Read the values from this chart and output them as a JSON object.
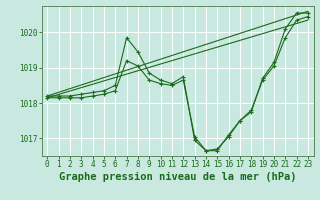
{
  "background_color": "#c8e8e0",
  "plot_bg_color": "#c8e8e0",
  "grid_color": "#ffffff",
  "line_color": "#1a6b1a",
  "spine_color": "#4a7a4a",
  "title": "Graphe pression niveau de la mer (hPa)",
  "xlim": [
    -0.5,
    23.5
  ],
  "ylim": [
    1016.5,
    1020.75
  ],
  "yticks": [
    1017,
    1018,
    1019,
    1020
  ],
  "xticks": [
    0,
    1,
    2,
    3,
    4,
    5,
    6,
    7,
    8,
    9,
    10,
    11,
    12,
    13,
    14,
    15,
    16,
    17,
    18,
    19,
    20,
    21,
    22,
    23
  ],
  "series": [
    {
      "x": [
        0,
        1,
        2,
        3,
        4,
        5,
        6,
        7,
        8,
        9,
        10,
        11,
        12,
        13,
        14,
        15,
        16,
        17,
        18,
        19,
        20,
        21,
        22,
        23
      ],
      "y": [
        1018.2,
        1018.2,
        1018.2,
        1018.25,
        1018.3,
        1018.35,
        1018.5,
        1019.85,
        1019.45,
        1018.85,
        1018.65,
        1018.55,
        1018.75,
        1016.95,
        1016.65,
        1016.65,
        1017.1,
        1017.5,
        1017.75,
        1018.7,
        1019.15,
        1020.1,
        1020.55,
        1020.55
      ]
    },
    {
      "x": [
        0,
        1,
        2,
        3,
        4,
        5,
        6,
        7,
        8,
        9,
        10,
        11,
        12,
        13,
        14,
        15,
        16,
        17,
        18,
        19,
        20,
        21,
        22,
        23
      ],
      "y": [
        1018.15,
        1018.15,
        1018.15,
        1018.15,
        1018.2,
        1018.25,
        1018.35,
        1019.2,
        1019.05,
        1018.65,
        1018.55,
        1018.5,
        1018.65,
        1017.05,
        1016.65,
        1016.7,
        1017.05,
        1017.5,
        1017.8,
        1018.65,
        1019.05,
        1019.85,
        1020.35,
        1020.45
      ]
    },
    {
      "x": [
        0,
        23
      ],
      "y": [
        1018.2,
        1020.6
      ]
    },
    {
      "x": [
        0,
        23
      ],
      "y": [
        1018.15,
        1020.35
      ]
    }
  ],
  "title_fontsize": 7.5,
  "tick_fontsize": 5.5,
  "tick_color": "#1a6b1a",
  "label_color": "#1a6b1a"
}
